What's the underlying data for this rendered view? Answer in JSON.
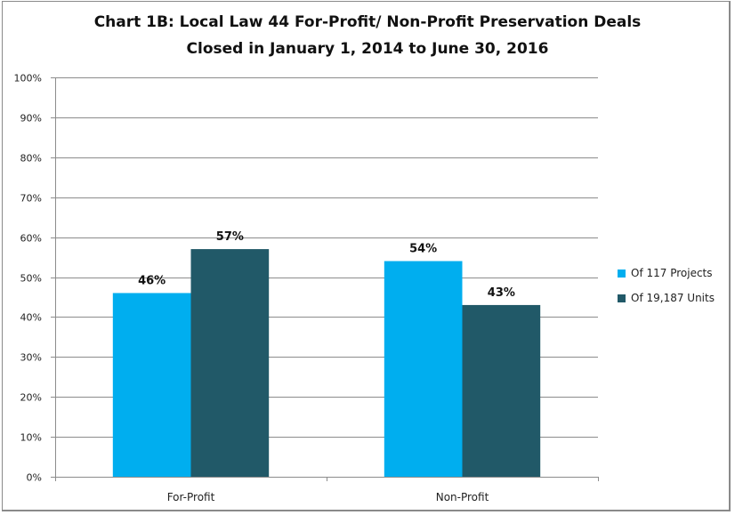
{
  "chart_data": {
    "type": "bar",
    "title": "Chart 1B: Local Law 44 For-Profit/ Non-Profit Preservation Deals",
    "subtitle": "Closed in January 1, 2014 to June 30, 2016",
    "categories": [
      "For-Profit",
      "Non-Profit"
    ],
    "series": [
      {
        "name": "Of 117 Projects",
        "values": [
          46,
          54
        ],
        "labels": [
          "46%",
          "54%"
        ],
        "color": "#00aeef"
      },
      {
        "name": "Of 19,187 Units",
        "values": [
          57,
          43
        ],
        "labels": [
          "57%",
          "43%"
        ],
        "color": "#215968"
      }
    ],
    "xlabel": "",
    "ylabel": "",
    "ylim": [
      0,
      100
    ],
    "yticks": [
      "0%",
      "10%",
      "20%",
      "30%",
      "40%",
      "50%",
      "60%",
      "70%",
      "80%",
      "90%",
      "100%"
    ],
    "grid": true,
    "legend_position": "right"
  }
}
